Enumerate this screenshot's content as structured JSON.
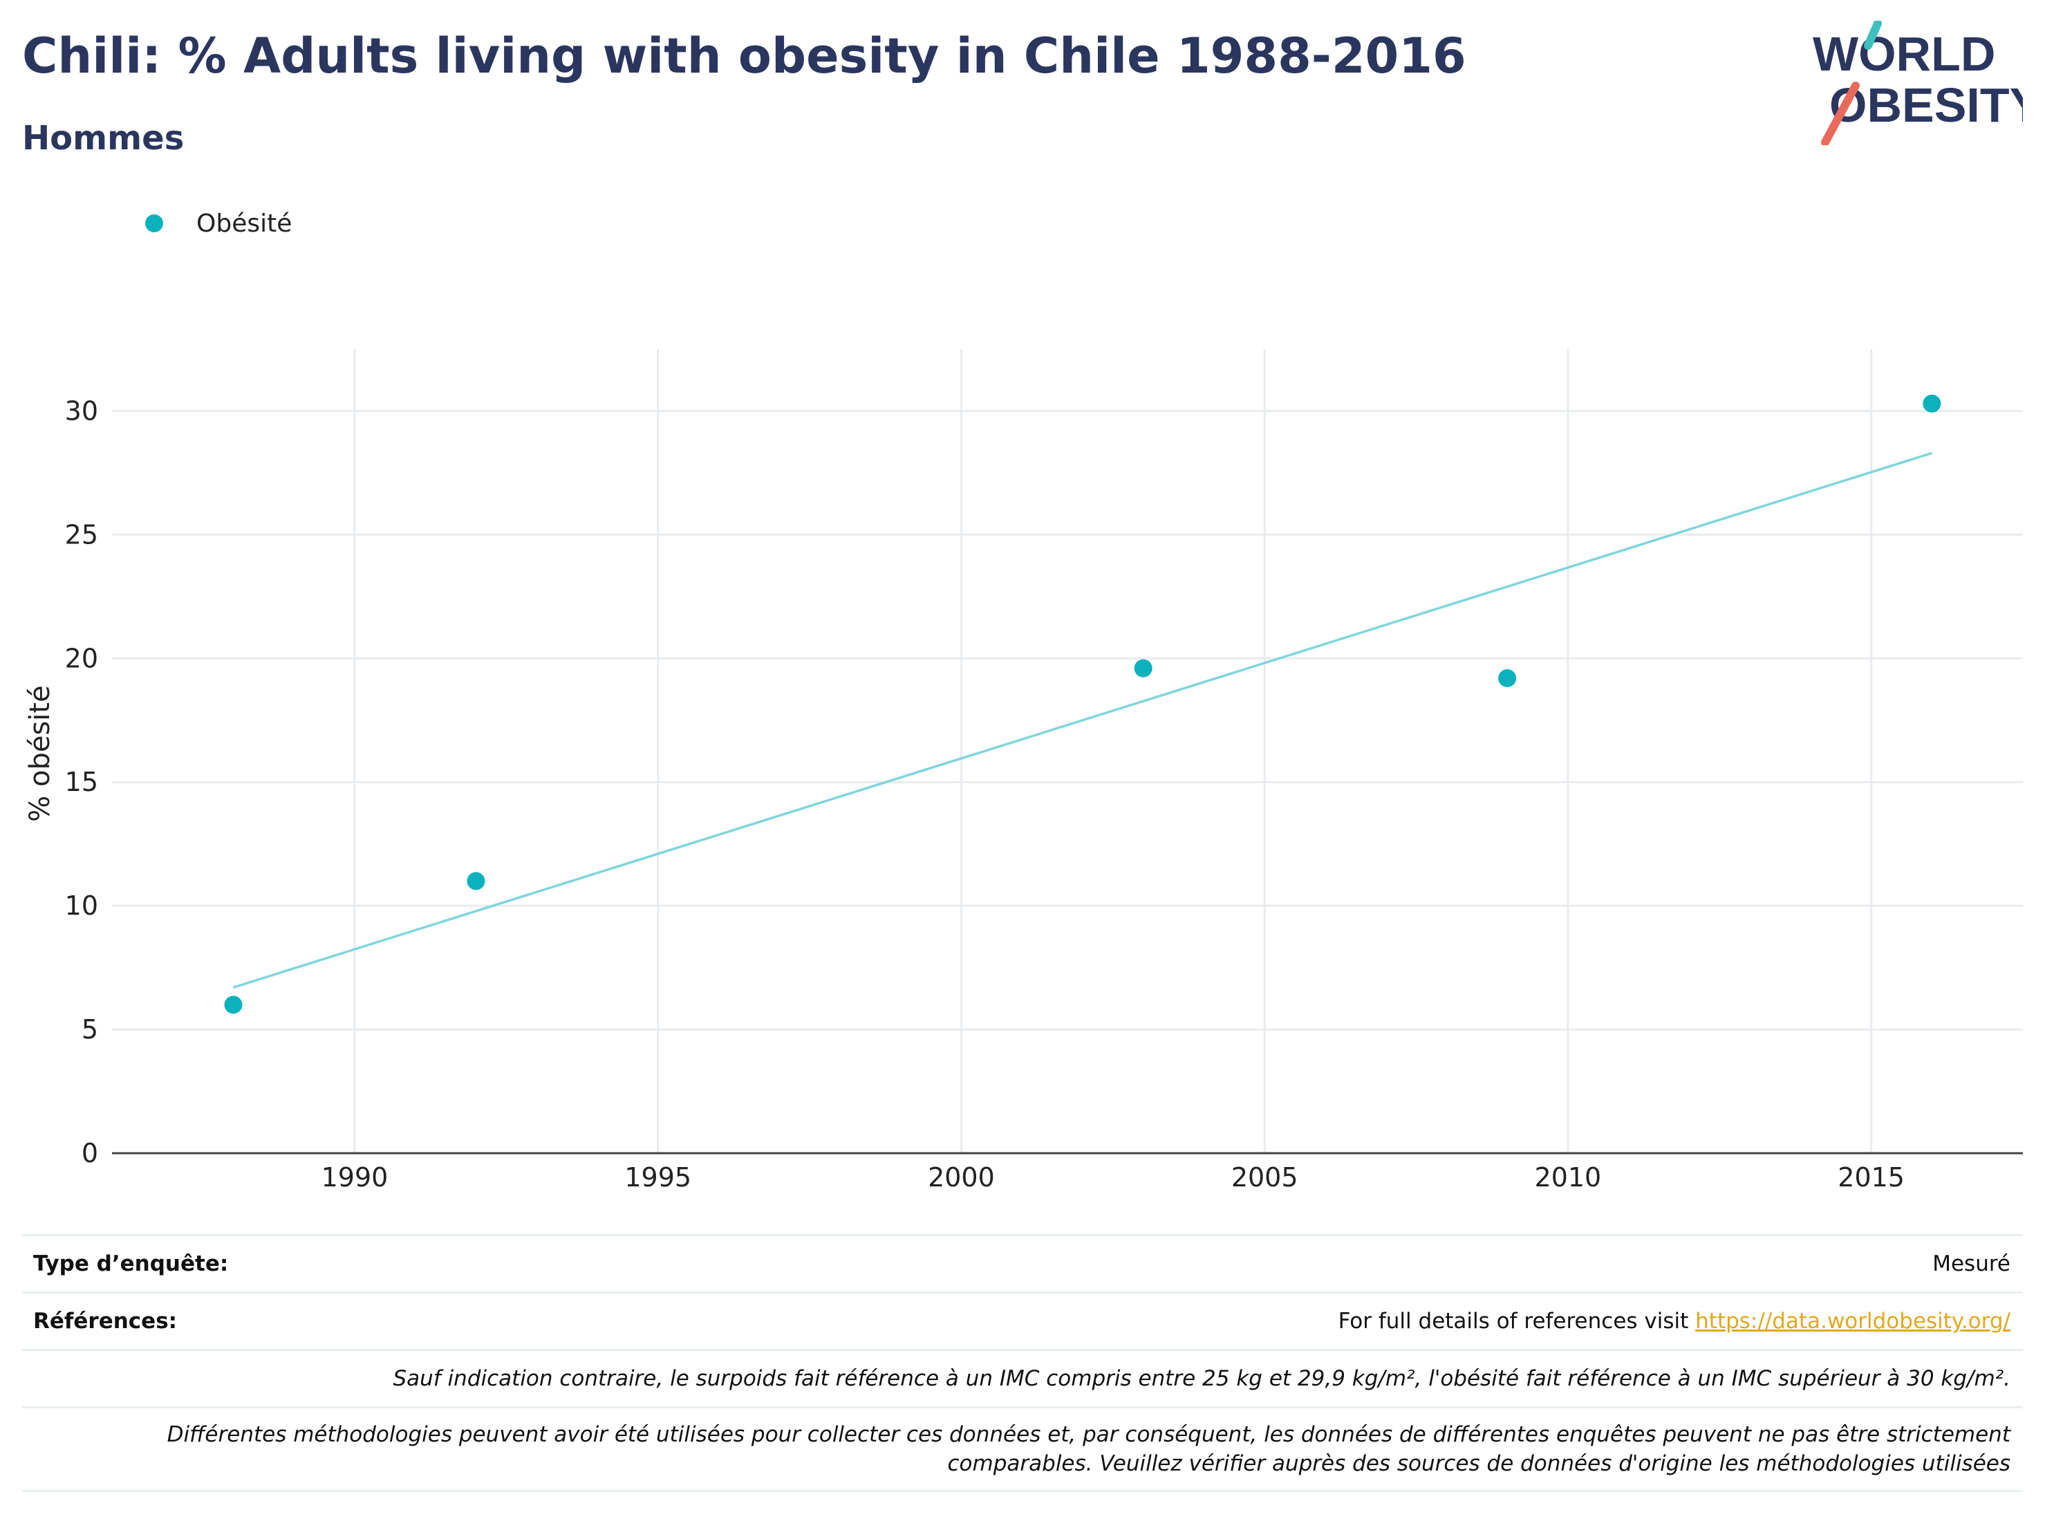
{
  "header": {
    "title": "Chili: % Adults living with obesity in Chile 1988-2016",
    "subtitle": "Hommes"
  },
  "logo": {
    "line1": "WORLD",
    "line2": "OBESITY"
  },
  "legend": {
    "items": [
      {
        "label": "Obésité",
        "color": "#0bb2bd"
      }
    ]
  },
  "chart_data": {
    "type": "scatter",
    "title": "Chili: % Adults living with obesity in Chile 1988-2016",
    "subtitle": "Hommes",
    "xlabel": "",
    "ylabel": "% obésité",
    "xlim": [
      1986,
      2017.5
    ],
    "ylim": [
      0,
      32.5
    ],
    "x_ticks": [
      1990,
      1995,
      2000,
      2005,
      2010,
      2015
    ],
    "y_ticks": [
      0,
      5,
      10,
      15,
      20,
      25,
      30
    ],
    "grid": true,
    "legend_position": "top-left",
    "series": [
      {
        "name": "Obésité",
        "color": "#0bb2bd",
        "points": [
          {
            "x": 1988,
            "y": 6.0
          },
          {
            "x": 1992,
            "y": 11.0
          },
          {
            "x": 2003,
            "y": 19.6
          },
          {
            "x": 2009,
            "y": 19.2
          },
          {
            "x": 2016,
            "y": 30.3
          }
        ]
      }
    ],
    "trendline": {
      "color": "#7fd6dc",
      "start": {
        "x": 1988,
        "y": 6.7
      },
      "end": {
        "x": 2016,
        "y": 28.3
      }
    }
  },
  "info_table": {
    "survey_type_label": "Type d’enquête:",
    "survey_type_value": "Mesuré",
    "references_label": "Références:",
    "references_text": "For full details of references visit ",
    "references_link": "https://data.worldobesity.org/",
    "note1": "Sauf indication contraire, le surpoids fait référence à un IMC compris entre 25 kg et 29,9 kg/m², l'obésité fait référence à un IMC supérieur à 30 kg/m².",
    "note2_line1": "Différentes méthodologies peuvent avoir été utilisées pour collecter ces données et, par conséquent, les données de différentes enquêtes peuvent ne pas être strictement",
    "note2_line2": "comparables. Veuillez vérifier auprès des sources de données d'origine les méthodologies utilisées"
  },
  "colors": {
    "navy": "#2b365f",
    "accent": "#0bb2bd",
    "trend": "#7fd6dc",
    "logo_red": "#e96a5b",
    "link": "#e0a91e"
  }
}
